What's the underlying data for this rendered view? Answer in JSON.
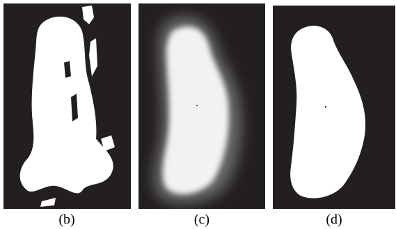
{
  "panels": [
    {
      "caption": "(b)"
    },
    {
      "caption": "(c)"
    },
    {
      "caption": "(d)"
    }
  ]
}
